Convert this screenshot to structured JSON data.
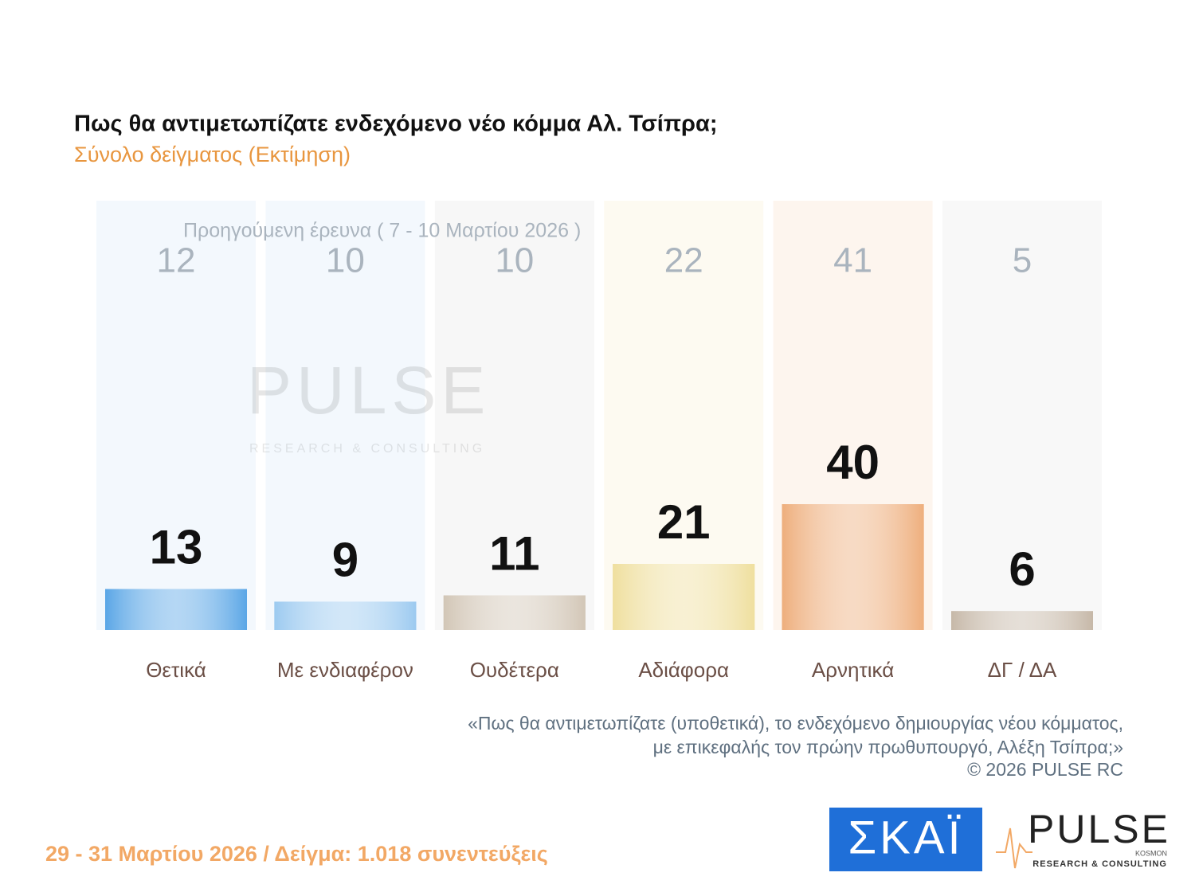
{
  "chart_data": {
    "type": "bar",
    "title": "Πως θα αντιμετωπίζατε ενδεχόμενο νέο κόμμα Αλ. Τσίπρα;",
    "subtitle": "Σύνολο δείγματος  (Εκτίμηση)",
    "previous_label": "Προηγούμενη έρευνα ( 7 - 10 Μαρτίου 2026 )",
    "categories": [
      "Θετικά",
      "Με ενδιαφέρον",
      "Ουδέτερα",
      "Αδιάφορα",
      "Αρνητικά",
      "ΔΓ / ΔΑ"
    ],
    "values": [
      13,
      9,
      11,
      21,
      40,
      6
    ],
    "previous_values": [
      12,
      10,
      10,
      22,
      41,
      5
    ],
    "colors": [
      "#5aa6e6",
      "#9ccaf0",
      "#d2c6b6",
      "#efdf9e",
      "#eeae7c",
      "#c6b8a8"
    ],
    "column_colors": [
      "#f3f8fd",
      "#f3f8fd",
      "#f7f7f7",
      "#fdfaf1",
      "#fdf5ee",
      "#f8f8f8"
    ],
    "footnote": [
      "«Πως θα αντιμετωπίζατε (υποθετικά), το ενδεχόμενο δημιουργίας νέου κόμματος,",
      "με επικεφαλής τον πρώην πρωθυπουργό, Αλέξη Τσίπρα;»",
      "©  2026  PULSE RC"
    ],
    "date_line": "29 - 31  Μαρτίου 2026  /  Δείγμα:  1.018 συνεντεύξεις"
  },
  "logos": {
    "skai": "ΣΚΑΪ",
    "pulse": "PULSE",
    "kosmon": "KOSMON",
    "tagline": "RESEARCH & CONSULTING"
  }
}
